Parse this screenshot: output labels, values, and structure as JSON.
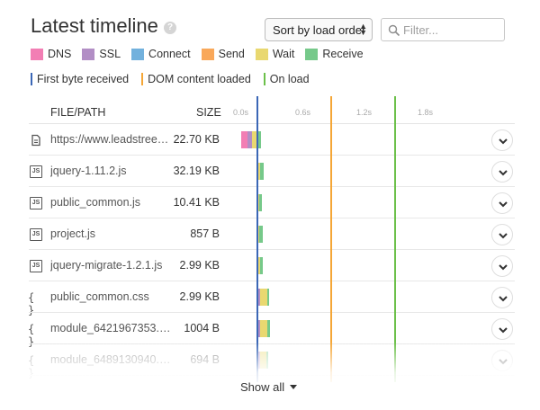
{
  "header": {
    "title": "Latest timeline",
    "help_glyph": "?",
    "sort_label": "Sort by load order",
    "filter_placeholder": "Filter..."
  },
  "legend": {
    "phases": [
      {
        "label": "DNS",
        "color": "#f27eb4"
      },
      {
        "label": "SSL",
        "color": "#b28ec5"
      },
      {
        "label": "Connect",
        "color": "#72b1dd"
      },
      {
        "label": "Send",
        "color": "#f9a85a"
      },
      {
        "label": "Wait",
        "color": "#e9d870"
      },
      {
        "label": "Receive",
        "color": "#76c98a"
      }
    ],
    "markers": [
      {
        "label": "First byte received",
        "color": "#3b67b6"
      },
      {
        "label": "DOM content loaded",
        "color": "#f5a636"
      },
      {
        "label": "On load",
        "color": "#6cc04a"
      }
    ]
  },
  "columns": {
    "file": "FILE/PATH",
    "size": "SIZE",
    "ticks": [
      "0.0s",
      "0.6s",
      "1.2s",
      "1.8s"
    ]
  },
  "rows": [
    {
      "icon": "document-icon",
      "name": "https://www.leadstree…",
      "size": "22.70 KB"
    },
    {
      "icon": "js-file-icon",
      "name": "jquery-1.11.2.js",
      "size": "32.19 KB"
    },
    {
      "icon": "js-file-icon",
      "name": "public_common.js",
      "size": "10.41 KB"
    },
    {
      "icon": "js-file-icon",
      "name": "project.js",
      "size": "857 B"
    },
    {
      "icon": "js-file-icon",
      "name": "jquery-migrate-1.2.1.js",
      "size": "2.99 KB"
    },
    {
      "icon": "css-file-icon",
      "name": "public_common.css",
      "size": "2.99 KB"
    },
    {
      "icon": "css-file-icon",
      "name": "module_6421967353.…",
      "size": "1004 B"
    },
    {
      "icon": "css-file-icon",
      "name": "module_6489130940.…",
      "size": "694 B"
    }
  ],
  "footer": {
    "show_all_label": "Show all"
  }
}
